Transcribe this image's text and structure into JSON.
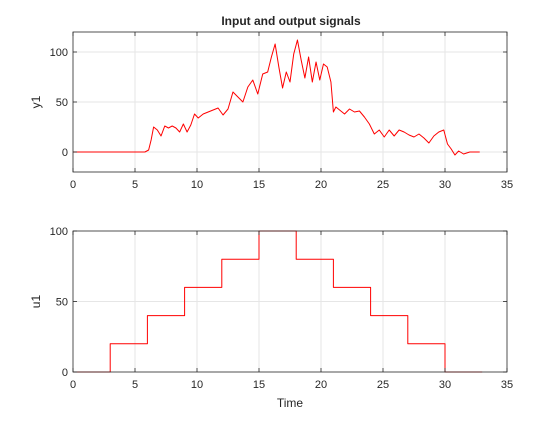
{
  "figure": {
    "title": "Input and output signals"
  },
  "chart_data": [
    {
      "type": "line",
      "title": "Input and output signals",
      "xlabel": "",
      "ylabel": "y1",
      "xlim": [
        0,
        35
      ],
      "ylim": [
        -20,
        120
      ],
      "xticks": [
        0,
        5,
        10,
        15,
        20,
        25,
        30,
        35
      ],
      "yticks": [
        0,
        50,
        100
      ],
      "grid": true,
      "series_color": "#ff0000",
      "series": [
        {
          "x": [
            0,
            1,
            2,
            3,
            4,
            5,
            5.8,
            6.1,
            6.3,
            6.5,
            6.8,
            7.1,
            7.4,
            7.7,
            8.0,
            8.3,
            8.6,
            8.9,
            9.2,
            9.5,
            9.8,
            10.1,
            10.5,
            10.9,
            11.3,
            11.7,
            12.1,
            12.5,
            12.9,
            13.3,
            13.7,
            14.1,
            14.5,
            14.9,
            15.3,
            15.7,
            16.0,
            16.3,
            16.6,
            16.9,
            17.2,
            17.5,
            17.8,
            18.1,
            18.4,
            18.7,
            19.0,
            19.3,
            19.6,
            19.9,
            20.2,
            20.5,
            20.8,
            21.0,
            21.2,
            21.5,
            21.9,
            22.3,
            22.7,
            23.1,
            23.5,
            23.9,
            24.3,
            24.7,
            25.1,
            25.5,
            25.9,
            26.3,
            26.7,
            27.1,
            27.5,
            27.9,
            28.3,
            28.7,
            29.1,
            29.5,
            29.9,
            30.2,
            30.5,
            30.8,
            31.1,
            31.5,
            32.0,
            32.8
          ],
          "y": [
            0,
            0,
            0,
            0,
            0,
            0,
            0,
            2,
            12,
            25,
            22,
            16,
            26,
            24,
            26,
            24,
            20,
            28,
            20,
            27,
            38,
            34,
            38,
            40,
            42,
            44,
            37,
            43,
            60,
            55,
            50,
            65,
            72,
            58,
            78,
            80,
            95,
            108,
            85,
            64,
            80,
            70,
            98,
            112,
            92,
            74,
            95,
            70,
            90,
            72,
            88,
            85,
            70,
            40,
            45,
            42,
            38,
            43,
            40,
            41,
            35,
            28,
            18,
            22,
            15,
            22,
            16,
            22,
            20,
            17,
            15,
            18,
            14,
            9,
            16,
            20,
            22,
            8,
            3,
            -3,
            1,
            -2,
            0,
            0
          ]
        }
      ]
    },
    {
      "type": "line",
      "title": "",
      "xlabel": "Time",
      "ylabel": "u1",
      "xlim": [
        0,
        35
      ],
      "ylim": [
        0,
        100
      ],
      "xticks": [
        0,
        5,
        10,
        15,
        20,
        25,
        30,
        35
      ],
      "yticks": [
        0,
        50,
        100
      ],
      "grid": true,
      "series_color": "#ff0000",
      "series": [
        {
          "step": true,
          "x": [
            0,
            3,
            6,
            9,
            12,
            15,
            18,
            21,
            24,
            27,
            30,
            33
          ],
          "y": [
            0,
            20,
            40,
            60,
            80,
            100,
            80,
            60,
            40,
            20,
            0,
            0
          ]
        }
      ]
    }
  ]
}
